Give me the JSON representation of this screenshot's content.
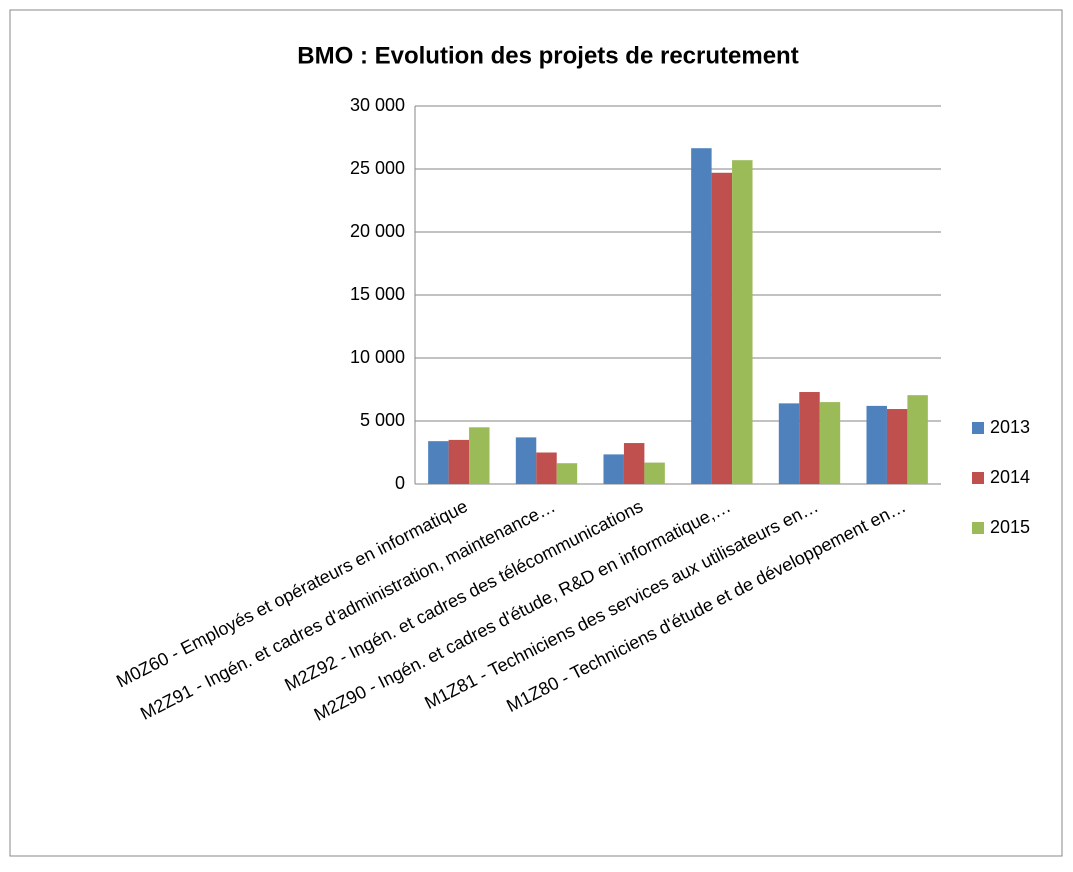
{
  "chart_data": {
    "type": "bar",
    "title": "BMO : Evolution des projets de recrutement",
    "categories": [
      "M0Z60 - Employés et opérateurs en informatique",
      "M2Z91 - Ingén. et cadres d'administration, maintenance…",
      "M2Z92 - Ingén. et cadres des télécommunications",
      "M2Z90 - Ingén. et cadres d'étude, R&D en informatique,…",
      "M1Z81 - Techniciens des services aux utilisateurs en…",
      "M1Z80 - Techniciens d'étude et de développement en…"
    ],
    "series": [
      {
        "name": "2013",
        "color": "#4f81bd",
        "values": [
          3400,
          3700,
          2350,
          26650,
          6400,
          6200
        ]
      },
      {
        "name": "2014",
        "color": "#c0504d",
        "values": [
          3500,
          2500,
          3250,
          24700,
          7300,
          5950
        ]
      },
      {
        "name": "2015",
        "color": "#9bbb59",
        "values": [
          4500,
          1650,
          1700,
          25700,
          6500,
          7050
        ]
      }
    ],
    "ylim": [
      0,
      30000
    ],
    "yticks": [
      0,
      {
        "value": 5000,
        "label": "5 000"
      },
      {
        "value": 10000,
        "label": "10 000"
      },
      {
        "value": 15000,
        "label": "15 000"
      },
      {
        "value": 20000,
        "label": "20 000"
      },
      {
        "value": 25000,
        "label": "25 000"
      },
      {
        "value": 30000,
        "label": "30 000"
      }
    ],
    "grid": true,
    "legend": "right"
  }
}
